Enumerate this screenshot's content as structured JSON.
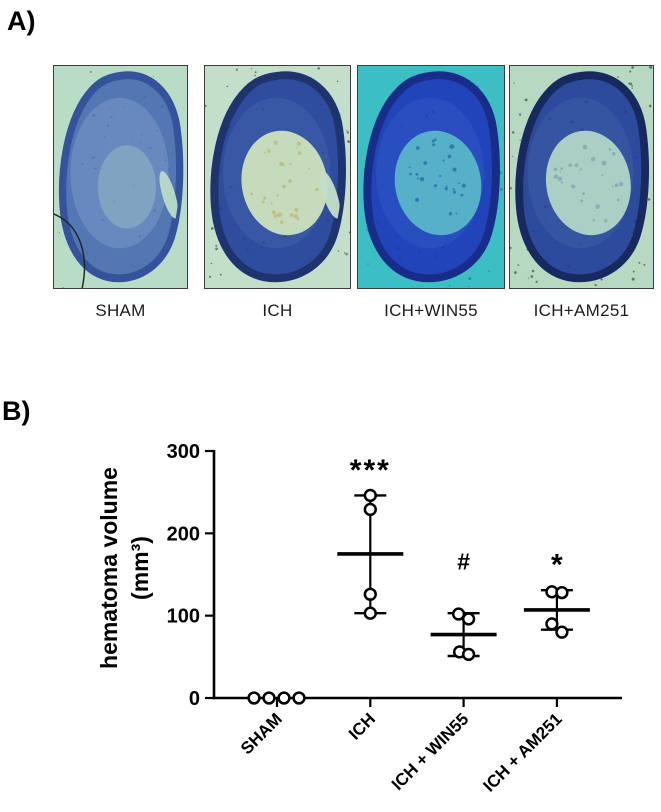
{
  "figure": {
    "panel_a": {
      "label": "A)",
      "images": [
        {
          "label": "SHAM",
          "bg": "#b9dcc6",
          "tissue": "#5377b3",
          "tissue_light": "#7d9cc8",
          "rim": "#35539c",
          "lesion": "#a9ccc9",
          "lesion_speckle": "#8fb7bd",
          "has_lesion": false,
          "has_slit": true,
          "has_artifact": true,
          "speckle": "#33553f",
          "speckle_n": 14
        },
        {
          "label": "ICH",
          "bg": "#c4dfc9",
          "tissue": "#2e4d9e",
          "tissue_light": "#4164ae",
          "rim": "#1f336f",
          "lesion": "#c6dabc",
          "lesion_speckle": "#b9bd7a",
          "has_lesion": true,
          "has_slit": true,
          "has_artifact": false,
          "speckle": "#2f4a35",
          "speckle_n": 70
        },
        {
          "label": "ICH+WIN55",
          "bg": "#3bbfc4",
          "tissue": "#2244ba",
          "tissue_light": "#2f57c6",
          "rim": "#182d89",
          "lesion": "#55b0c8",
          "lesion_speckle": "#2e6fae",
          "has_lesion": true,
          "has_slit": false,
          "has_artifact": false,
          "speckle": "#1d6f75",
          "speckle_n": 22
        },
        {
          "label": "ICH+AM251",
          "bg": "#b7d9c2",
          "tissue": "#2d4b9d",
          "tissue_light": "#3e60a9",
          "rim": "#17295f",
          "lesion": "#abcfc5",
          "lesion_speckle": "#7ea8b4",
          "has_lesion": true,
          "has_slit": false,
          "has_artifact": false,
          "speckle": "#2e4a36",
          "speckle_n": 80
        }
      ]
    },
    "panel_b": {
      "label": "B)"
    }
  },
  "chart_data": {
    "type": "scatter",
    "title": "",
    "ylabel": [
      "hematoma volume",
      "(mm³)"
    ],
    "ylim": [
      0,
      300
    ],
    "yticks": [
      0,
      100,
      200,
      300
    ],
    "categories": [
      "SHAM",
      "ICH",
      "ICH + WIN55",
      "ICH + AM251"
    ],
    "error_bar_type": "mean ± SD",
    "grid": false,
    "legend": null,
    "point_style": "open-circle",
    "groups": [
      {
        "category": "SHAM",
        "values": [
          0,
          0,
          0,
          0
        ],
        "jitter": [
          -23,
          -8,
          7,
          22
        ],
        "mean": null,
        "whisker_low": null,
        "whisker_high": null,
        "annotation": "",
        "annotation_value": null
      },
      {
        "category": "ICH",
        "values": [
          246,
          229,
          126,
          103
        ],
        "jitter": [
          0,
          0,
          0,
          0
        ],
        "mean": 175,
        "whisker_low": 103,
        "whisker_high": 246,
        "annotation": "***",
        "annotation_value": 265
      },
      {
        "category": "ICH + WIN55",
        "values": [
          102,
          96,
          56,
          53
        ],
        "jitter": [
          -5,
          5,
          -4,
          5
        ],
        "mean": 77,
        "whisker_low": 51,
        "whisker_high": 103,
        "annotation": "#",
        "annotation_value": 156
      },
      {
        "category": "ICH + AM251",
        "values": [
          129,
          128,
          90,
          80
        ],
        "jitter": [
          -5,
          5,
          -5,
          5
        ],
        "mean": 107,
        "whisker_low": 83,
        "whisker_high": 131,
        "annotation": "*",
        "annotation_value": 150
      }
    ]
  }
}
